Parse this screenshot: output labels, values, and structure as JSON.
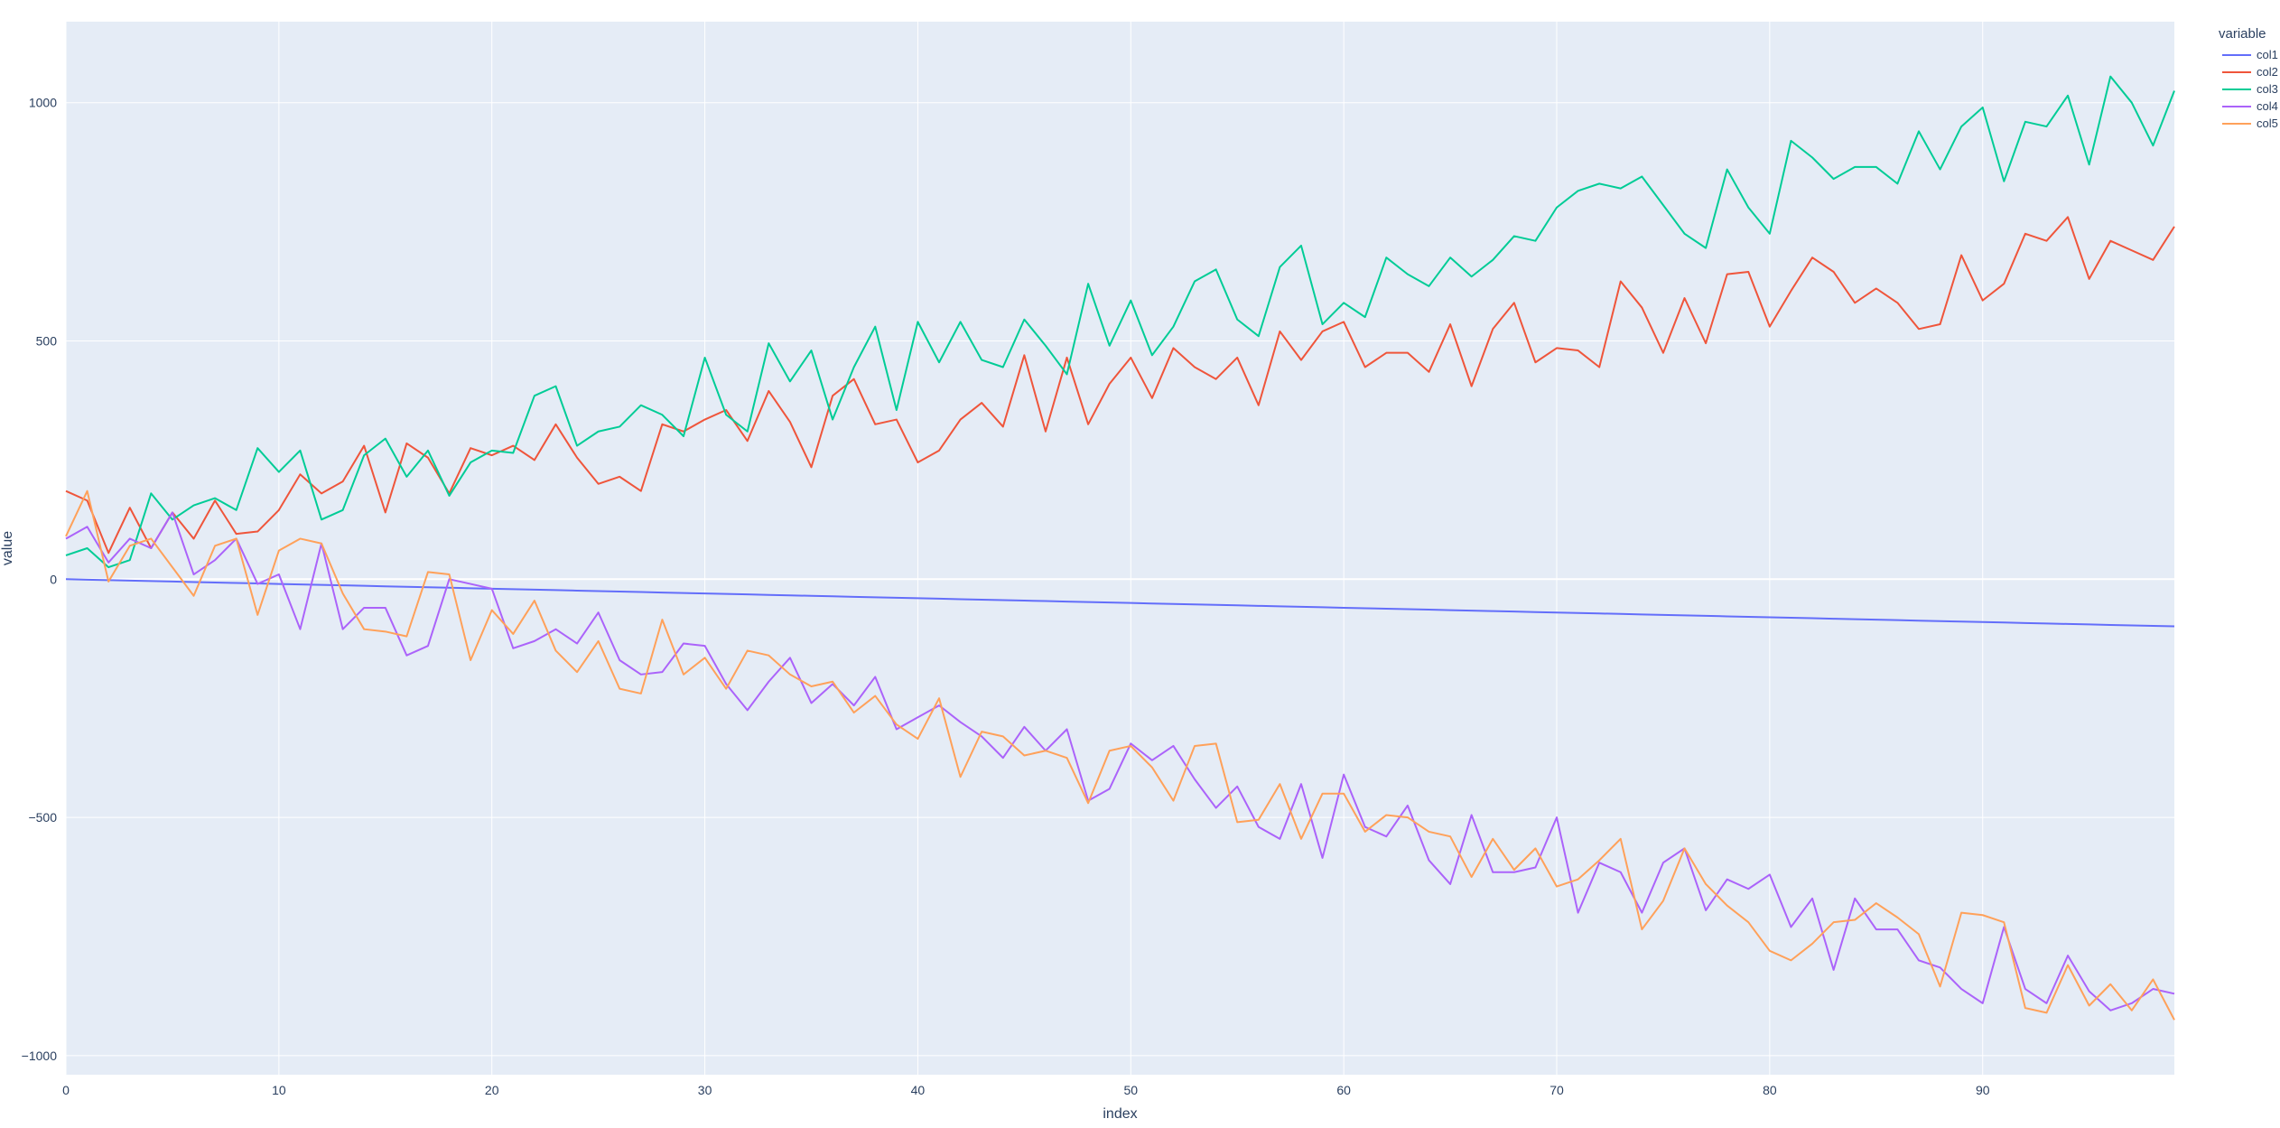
{
  "chart_data": {
    "type": "line",
    "title": "",
    "xlabel": "index",
    "ylabel": "value",
    "xlim": [
      0,
      99
    ],
    "ylim": [
      -1040,
      1170
    ],
    "x_ticks": [
      0,
      10,
      20,
      30,
      40,
      50,
      60,
      70,
      80,
      90
    ],
    "y_ticks": [
      -1000,
      -500,
      0,
      500,
      1000
    ],
    "y_tick_labels": [
      "−1000",
      "−500",
      "0",
      "500",
      "1000"
    ],
    "grid": true,
    "legend": {
      "title": "variable",
      "position": "top-right-outside"
    },
    "colors": {
      "plot_bg": "#e5ecf6",
      "grid": "#ffffff",
      "text": "#2a3f5f"
    },
    "series": [
      {
        "name": "col1",
        "color": "#636efa",
        "values": [
          0,
          -1,
          -2,
          -3,
          -4,
          -5,
          -6,
          -7,
          -8,
          -9,
          -10,
          -11,
          -12,
          -13,
          -14,
          -15,
          -16,
          -17,
          -18,
          -19,
          -20,
          -21,
          -22,
          -23,
          -24,
          -25,
          -26,
          -27,
          -28,
          -29,
          -30,
          -31,
          -32,
          -33,
          -34,
          -35,
          -36,
          -37,
          -38,
          -39,
          -40,
          -41,
          -42,
          -43,
          -44,
          -45,
          -46,
          -47,
          -48,
          -49,
          -50,
          -51,
          -52,
          -53,
          -54,
          -55,
          -56,
          -57,
          -58,
          -59,
          -60,
          -61,
          -62,
          -63,
          -64,
          -65,
          -66,
          -67,
          -68,
          -69,
          -70,
          -71,
          -72,
          -73,
          -74,
          -75,
          -76,
          -77,
          -78,
          -79,
          -80,
          -81,
          -82,
          -83,
          -84,
          -85,
          -86,
          -87,
          -88,
          -89,
          -90,
          -91,
          -92,
          -93,
          -94,
          -95,
          -96,
          -97,
          -98,
          -99
        ]
      },
      {
        "name": "col2",
        "color": "#ef553b",
        "values": [
          185,
          165,
          55,
          150,
          65,
          140,
          85,
          165,
          95,
          100,
          145,
          220,
          180,
          205,
          280,
          140,
          285,
          255,
          180,
          275,
          260,
          280,
          250,
          325,
          255,
          200,
          215,
          185,
          325,
          310,
          335,
          355,
          290,
          395,
          330,
          235,
          385,
          420,
          325,
          335,
          245,
          270,
          335,
          370,
          320,
          470,
          310,
          465,
          325,
          410,
          465,
          380,
          485,
          445,
          420,
          465,
          365,
          520,
          460,
          520,
          540,
          445,
          475,
          475,
          435,
          535,
          405,
          525,
          580,
          455,
          485,
          480,
          445,
          625,
          570,
          475,
          590,
          495,
          640,
          645,
          530,
          605,
          675,
          645,
          580,
          610,
          580,
          525,
          535,
          680,
          585,
          620,
          725,
          710,
          760,
          630,
          710,
          690,
          670,
          740
        ]
      },
      {
        "name": "col3",
        "color": "#00cc96",
        "values": [
          50,
          65,
          25,
          40,
          180,
          125,
          155,
          170,
          145,
          275,
          225,
          270,
          125,
          145,
          260,
          295,
          215,
          270,
          175,
          245,
          270,
          265,
          385,
          405,
          280,
          310,
          320,
          365,
          345,
          300,
          465,
          345,
          310,
          495,
          415,
          480,
          335,
          445,
          530,
          355,
          540,
          455,
          540,
          460,
          445,
          545,
          490,
          430,
          620,
          490,
          585,
          470,
          530,
          625,
          650,
          545,
          510,
          655,
          700,
          535,
          580,
          550,
          675,
          640,
          615,
          675,
          635,
          670,
          720,
          710,
          780,
          815,
          830,
          820,
          845,
          785,
          725,
          695,
          860,
          780,
          725,
          920,
          885,
          840,
          865,
          865,
          830,
          940,
          860,
          950,
          990,
          835,
          960,
          950,
          1015,
          870,
          1055,
          1000,
          910,
          1025
        ]
      },
      {
        "name": "col4",
        "color": "#ab63fa",
        "values": [
          85,
          110,
          35,
          85,
          65,
          140,
          10,
          40,
          85,
          -10,
          10,
          -105,
          75,
          -105,
          -60,
          -60,
          -160,
          -140,
          0,
          -10,
          -20,
          -145,
          -130,
          -105,
          -135,
          -70,
          -170,
          -200,
          -195,
          -135,
          -140,
          -220,
          -275,
          -215,
          -165,
          -260,
          -220,
          -265,
          -205,
          -315,
          -290,
          -265,
          -300,
          -330,
          -375,
          -310,
          -360,
          -315,
          -465,
          -440,
          -345,
          -380,
          -350,
          -420,
          -480,
          -435,
          -520,
          -545,
          -430,
          -585,
          -410,
          -520,
          -540,
          -475,
          -590,
          -640,
          -495,
          -615,
          -615,
          -605,
          -500,
          -700,
          -595,
          -615,
          -700,
          -595,
          -565,
          -695,
          -630,
          -650,
          -620,
          -730,
          -670,
          -820,
          -670,
          -735,
          -735,
          -800,
          -815,
          -860,
          -890,
          -730,
          -860,
          -890,
          -790,
          -865,
          -905,
          -890,
          -860,
          -870
        ]
      },
      {
        "name": "col5",
        "color": "#ffa15a",
        "values": [
          90,
          185,
          -5,
          70,
          85,
          25,
          -35,
          70,
          85,
          -75,
          60,
          85,
          75,
          -30,
          -105,
          -110,
          -120,
          15,
          10,
          -170,
          -65,
          -115,
          -45,
          -150,
          -195,
          -130,
          -230,
          -240,
          -85,
          -200,
          -165,
          -230,
          -150,
          -160,
          -200,
          -225,
          -215,
          -280,
          -245,
          -305,
          -335,
          -250,
          -415,
          -320,
          -330,
          -370,
          -360,
          -375,
          -470,
          -360,
          -350,
          -395,
          -465,
          -350,
          -345,
          -510,
          -505,
          -430,
          -545,
          -450,
          -450,
          -530,
          -495,
          -500,
          -530,
          -540,
          -625,
          -545,
          -610,
          -565,
          -645,
          -630,
          -590,
          -545,
          -735,
          -675,
          -565,
          -640,
          -685,
          -720,
          -780,
          -800,
          -765,
          -720,
          -715,
          -680,
          -710,
          -745,
          -855,
          -700,
          -705,
          -720,
          -900,
          -910,
          -810,
          -895,
          -850,
          -905,
          -840,
          -925
        ]
      }
    ]
  }
}
